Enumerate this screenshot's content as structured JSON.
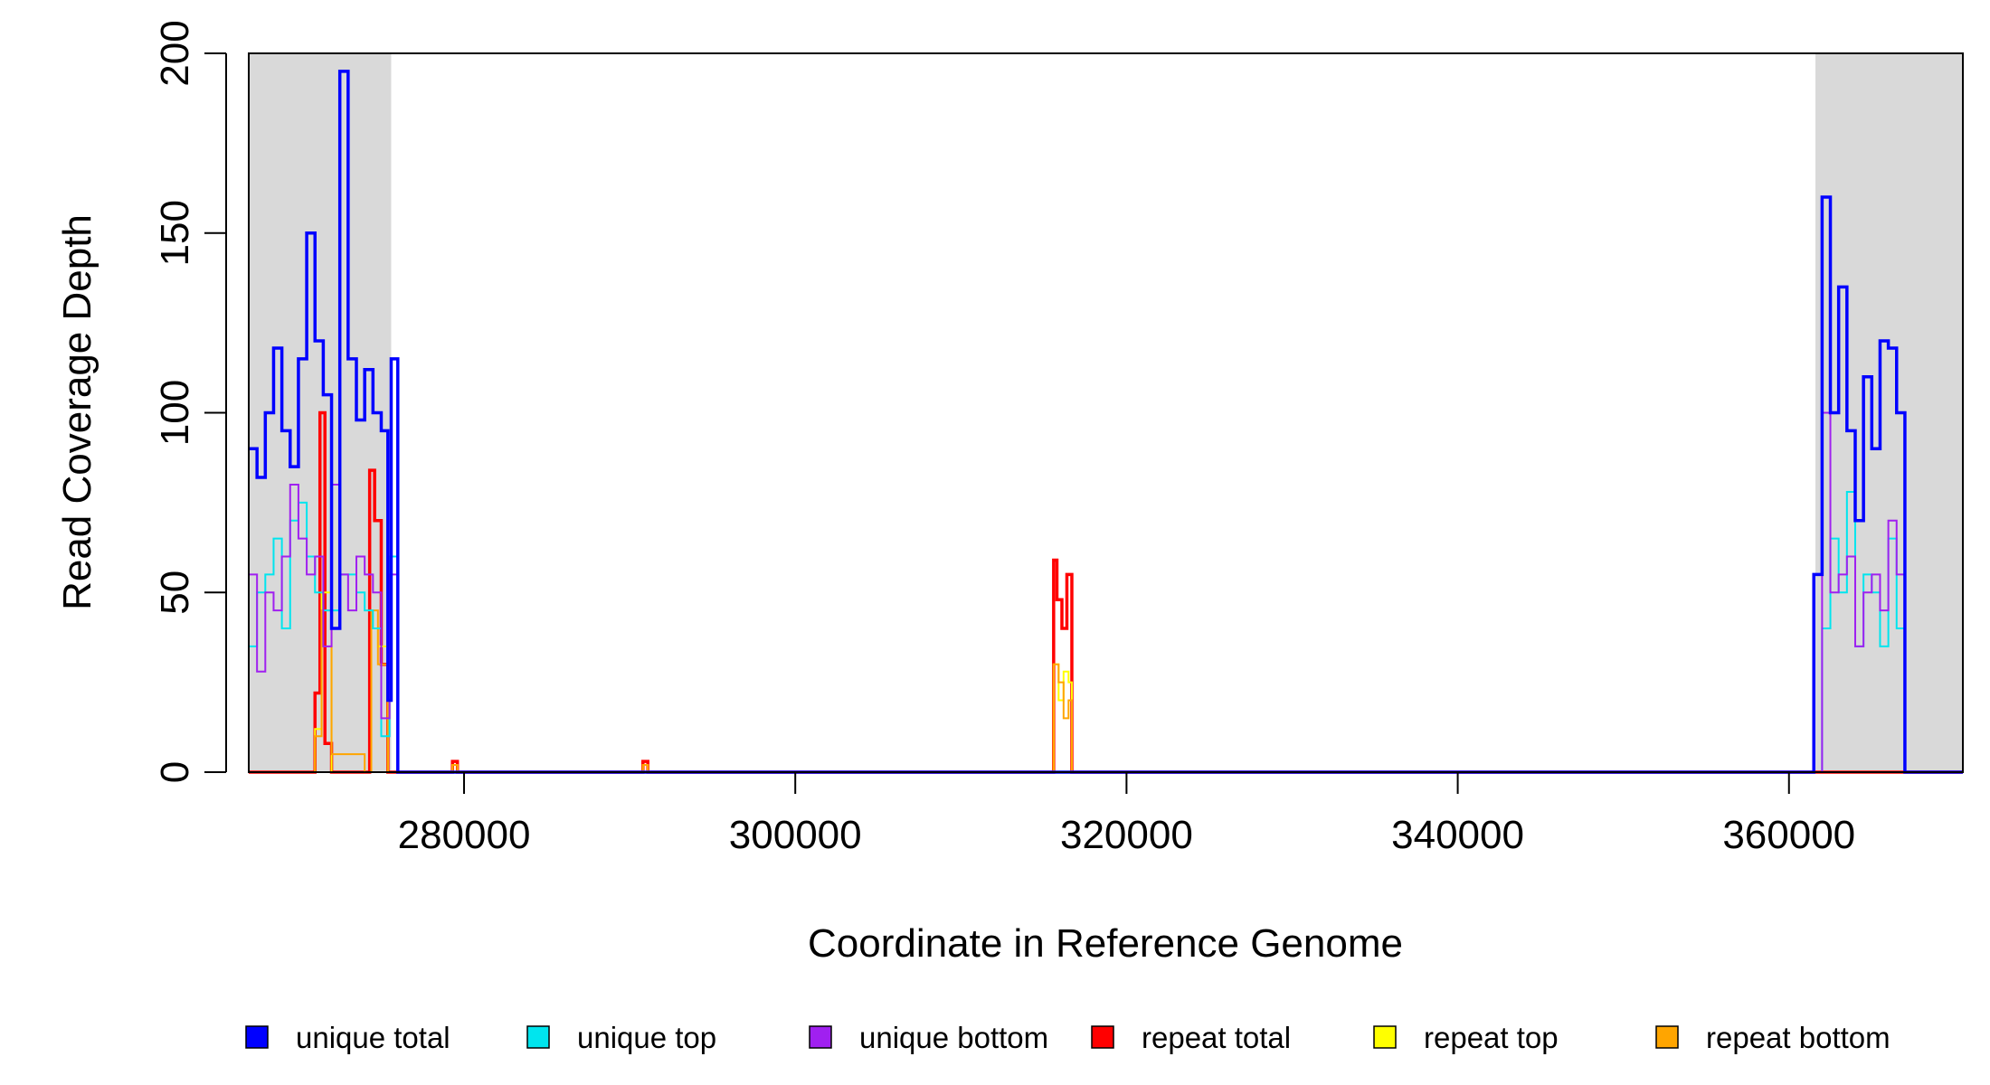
{
  "chart_data": {
    "type": "line",
    "title": "",
    "xlabel": "Coordinate in Reference Genome",
    "ylabel": "Read Coverage Depth",
    "xlim": [
      267000,
      370500
    ],
    "ylim": [
      0,
      200
    ],
    "x_ticks": [
      280000,
      300000,
      320000,
      340000,
      360000
    ],
    "x_tick_labels": [
      "280000",
      "300000",
      "320000",
      "340000",
      "360000"
    ],
    "y_ticks": [
      0,
      50,
      100,
      150,
      200
    ],
    "y_tick_labels": [
      "0",
      "50",
      "100",
      "150",
      "200"
    ],
    "grid": false,
    "legend_position": "bottom",
    "shaded_regions": [
      {
        "x_start": 267000,
        "x_end": 275600,
        "color": "#d9d9d9"
      },
      {
        "x_start": 361600,
        "x_end": 370500,
        "color": "#d9d9d9"
      }
    ],
    "series": [
      {
        "name": "unique total",
        "color": "#0000ff",
        "x": [
          267000,
          267500,
          268000,
          268500,
          269000,
          269500,
          270000,
          270500,
          271000,
          271500,
          272000,
          272500,
          273000,
          273500,
          274000,
          274500,
          275000,
          275400,
          275600,
          276000,
          296000,
          300000,
          361000,
          361500,
          362000,
          362500,
          363000,
          363500,
          364000,
          364500,
          365000,
          365500,
          366000,
          366500,
          367000,
          370500
        ],
        "values": [
          90,
          82,
          100,
          118,
          95,
          85,
          115,
          150,
          120,
          105,
          40,
          195,
          115,
          98,
          112,
          100,
          95,
          20,
          115,
          0,
          0,
          0,
          0,
          55,
          160,
          100,
          135,
          95,
          70,
          110,
          90,
          120,
          118,
          100,
          0,
          0
        ]
      },
      {
        "name": "unique top",
        "color": "#00e5ee",
        "x": [
          267000,
          267500,
          268000,
          268500,
          269000,
          269500,
          270000,
          270500,
          271000,
          271500,
          272000,
          272500,
          273000,
          273500,
          274000,
          274500,
          275000,
          275500,
          276000,
          361500,
          362000,
          362500,
          363000,
          363500,
          364000,
          364500,
          365000,
          365500,
          366000,
          366500,
          367000,
          370500
        ],
        "values": [
          35,
          50,
          55,
          65,
          40,
          70,
          75,
          60,
          50,
          45,
          45,
          55,
          55,
          50,
          45,
          40,
          10,
          60,
          0,
          0,
          40,
          65,
          50,
          78,
          35,
          55,
          50,
          35,
          65,
          40,
          0,
          0
        ]
      },
      {
        "name": "unique bottom",
        "color": "#a020f0",
        "x": [
          267000,
          267500,
          268000,
          268500,
          269000,
          269500,
          270000,
          270500,
          271000,
          271500,
          272000,
          272500,
          273000,
          273500,
          274000,
          274500,
          275000,
          275500,
          276000,
          361500,
          362000,
          362500,
          363000,
          363500,
          364000,
          364500,
          365000,
          365500,
          366000,
          366500,
          367000,
          370500
        ],
        "values": [
          55,
          28,
          50,
          45,
          60,
          80,
          65,
          55,
          60,
          35,
          80,
          55,
          45,
          60,
          55,
          50,
          15,
          55,
          0,
          0,
          100,
          50,
          55,
          60,
          35,
          50,
          55,
          45,
          70,
          55,
          0,
          0
        ]
      },
      {
        "name": "repeat total",
        "color": "#ff0000",
        "x": [
          267000,
          270600,
          271000,
          271300,
          271600,
          272000,
          274000,
          274300,
          274600,
          275000,
          275400,
          276000,
          279300,
          279600,
          290800,
          291100,
          315400,
          315600,
          315800,
          316100,
          316400,
          316700,
          370500
        ],
        "values": [
          0,
          0,
          22,
          100,
          8,
          0,
          0,
          84,
          70,
          30,
          0,
          0,
          3,
          0,
          3,
          0,
          0,
          59,
          48,
          40,
          55,
          0,
          0
        ]
      },
      {
        "name": "repeat top",
        "color": "#ffff00",
        "x": [
          267000,
          270600,
          271000,
          271400,
          272000,
          274000,
          274400,
          274800,
          275400,
          276000,
          279300,
          279600,
          290800,
          291100,
          315400,
          315600,
          315900,
          316200,
          316500,
          316700,
          370500
        ],
        "values": [
          0,
          0,
          12,
          50,
          0,
          0,
          40,
          35,
          0,
          0,
          2,
          0,
          2,
          0,
          0,
          30,
          20,
          28,
          25,
          0,
          0
        ]
      },
      {
        "name": "repeat bottom",
        "color": "#ffa500",
        "x": [
          267000,
          270600,
          271000,
          271400,
          272000,
          274000,
          274400,
          274800,
          275400,
          276000,
          279300,
          279600,
          290800,
          291100,
          315400,
          315600,
          315900,
          316200,
          316500,
          316700,
          370500
        ],
        "values": [
          0,
          0,
          10,
          45,
          5,
          0,
          45,
          30,
          0,
          0,
          2,
          0,
          2,
          0,
          0,
          30,
          25,
          15,
          20,
          0,
          0
        ]
      }
    ]
  }
}
